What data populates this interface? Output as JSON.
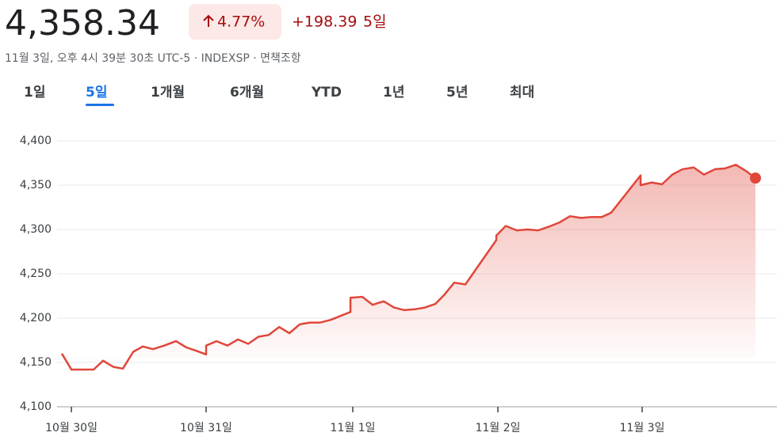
{
  "header": {
    "price": "4,358.34",
    "change_percent": "4.77%",
    "change_value": "+198.39",
    "period": "5일",
    "subtitle": "11월 3일, 오후 4시 39분 30초 UTC-5 · INDEXSP · 면책조항"
  },
  "tabs": {
    "items": [
      "1일",
      "5일",
      "1개월",
      "6개월",
      "YTD",
      "1년",
      "5년",
      "최대"
    ],
    "selected": 1
  },
  "chart_data": {
    "type": "line",
    "color": "#e0463a",
    "grid": true,
    "x": [
      -0.067,
      0,
      0.156,
      0.222,
      0.294,
      0.361,
      0.433,
      0.5,
      0.572,
      0.65,
      0.733,
      0.806,
      0.878,
      0.944,
      0.944,
      1.017,
      1.094,
      1.167,
      1.239,
      1.311,
      1.383,
      1.456,
      1.528,
      1.6,
      1.672,
      1.744,
      1.817,
      1.956,
      1.956,
      2.039,
      2.111,
      2.189,
      2.261,
      2.333,
      2.406,
      2.478,
      2.55,
      2.611,
      2.683,
      2.761,
      2.978,
      2.978,
      3.044,
      3.122,
      3.194,
      3.272,
      3.344,
      3.422,
      3.494,
      3.572,
      3.644,
      3.717,
      3.783,
      3.989,
      3.989,
      4.067,
      4.139,
      4.211,
      4.283,
      4.361,
      4.433,
      4.511,
      4.583,
      4.656,
      4.728,
      4.794
    ],
    "values": [
      4160,
      4142,
      4142,
      4152,
      4145,
      4143,
      4162,
      4168,
      4165,
      4169,
      4174,
      4167,
      4163,
      4159,
      4169,
      4174,
      4169,
      4176,
      4171,
      4179,
      4181,
      4190,
      4183,
      4193,
      4195,
      4195,
      4198,
      4207,
      4223,
      4224,
      4215,
      4219,
      4212,
      4209,
      4210,
      4212,
      4216,
      4226,
      4240,
      4238,
      4288,
      4293,
      4304,
      4299,
      4300,
      4299,
      4303,
      4308,
      4315,
      4313,
      4314,
      4314,
      4319,
      4361,
      4350,
      4353,
      4351,
      4362,
      4368,
      4370,
      4362,
      4368,
      4369,
      4373,
      4366,
      4358
    ],
    "xlim": [
      -0.067,
      4.794
    ],
    "xticks": [
      {
        "value": 0,
        "label": "10월 30일"
      },
      {
        "value": 0.944,
        "label": "10월 31일"
      },
      {
        "value": 1.972,
        "label": "11월 1일"
      },
      {
        "value": 2.989,
        "label": "11월 2일"
      },
      {
        "value": 4,
        "label": "11월 3일"
      }
    ],
    "ylim": [
      4100,
      4400
    ],
    "yticks": [
      {
        "value": 4100,
        "label": "4,100"
      },
      {
        "value": 4150,
        "label": "4,150"
      },
      {
        "value": 4200,
        "label": "4,200"
      },
      {
        "value": 4250,
        "label": "4,250"
      },
      {
        "value": 4300,
        "label": "4,300"
      },
      {
        "value": 4350,
        "label": "4,350"
      },
      {
        "value": 4400,
        "label": "4,400"
      }
    ]
  }
}
